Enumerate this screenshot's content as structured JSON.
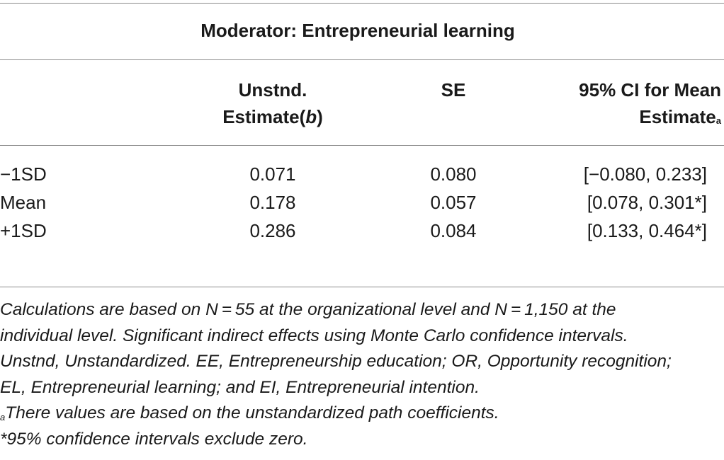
{
  "table": {
    "title": "Moderator: Entrepreneurial learning",
    "headers": {
      "estimate_line1": "Unstnd.",
      "estimate_line2_pre": "Estimate(",
      "estimate_line2_b": "b",
      "estimate_line2_post": ")",
      "se": "SE",
      "ci_line1": "95% CI for Mean",
      "ci_line2": "Estimate",
      "ci_superscript": "a"
    },
    "rows": [
      {
        "label": "−1SD",
        "estimate": "0.071",
        "se": "0.080",
        "ci": "[−0.080, 0.233]"
      },
      {
        "label": "Mean",
        "estimate": "0.178",
        "se": "0.057",
        "ci": "[0.078, 0.301*]"
      },
      {
        "label": "+1SD",
        "estimate": "0.286",
        "se": "0.084",
        "ci": "[0.133, 0.464*]"
      }
    ]
  },
  "notes": {
    "line1": "Calculations are based on N = 55 at the organizational level and N = 1,150 at the",
    "line2": "individual level. Significant indirect effects using Monte Carlo confidence intervals.",
    "line3": "Unstnd, Unstandardized. EE, Entrepreneurship education; OR, Opportunity recognition;",
    "line4": "EL, Entrepreneurial learning; and EI, Entrepreneurial intention.",
    "footnote_a_marker": "a",
    "footnote_a_text": "There values are based on the unstandardized path coefficients.",
    "footnote_star": "*95% confidence intervals exclude zero."
  }
}
